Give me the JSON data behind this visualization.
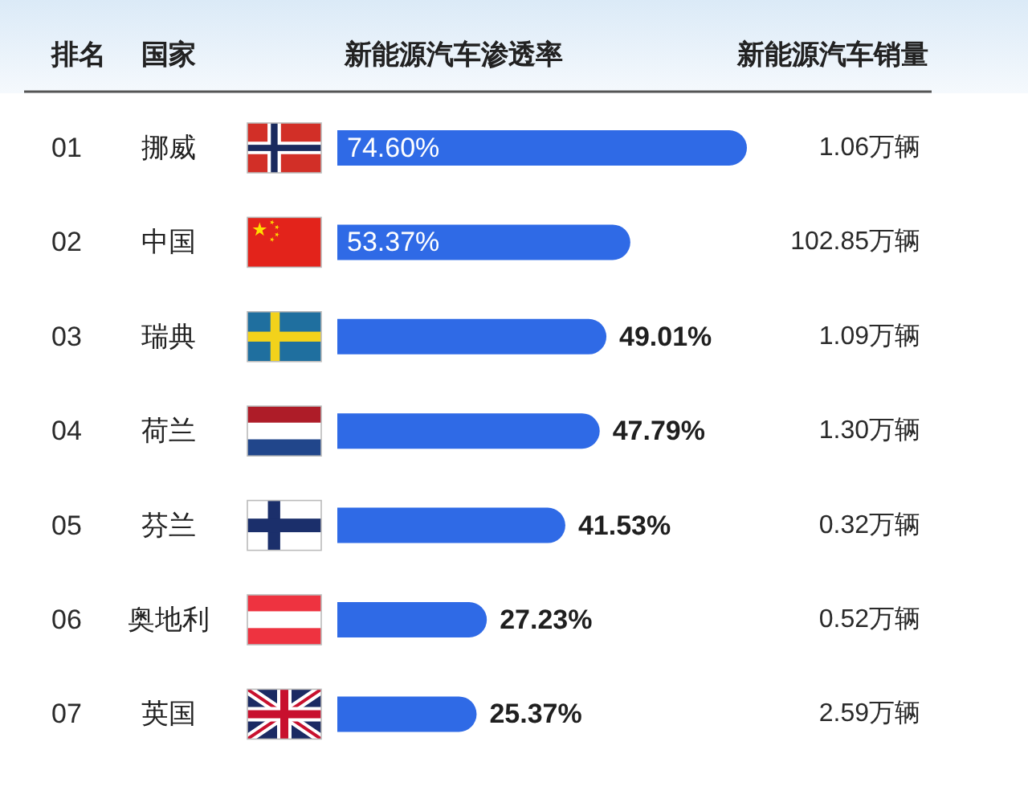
{
  "chart_data": {
    "type": "bar",
    "orientation": "horizontal",
    "xlabel": "新能源汽车渗透率",
    "ylabel": "国家",
    "categories": [
      "挪威",
      "中国",
      "瑞典",
      "荷兰",
      "芬兰",
      "奥地利",
      "英国"
    ],
    "values": [
      74.6,
      53.37,
      49.01,
      47.79,
      41.53,
      27.23,
      25.37
    ],
    "value_labels": [
      "74.60%",
      "53.37%",
      "49.01%",
      "47.79%",
      "41.53%",
      "27.23%",
      "25.37%"
    ],
    "color": "#2f6ae6",
    "annotations": [
      "排名",
      "01",
      "02",
      "03",
      "04",
      "05",
      "06",
      "07",
      "新能源汽车销量",
      "1.06万辆",
      "102.85万辆",
      "1.09万辆",
      "1.30万辆",
      "0.32万辆",
      "0.52万辆",
      "2.59万辆"
    ]
  }
}
